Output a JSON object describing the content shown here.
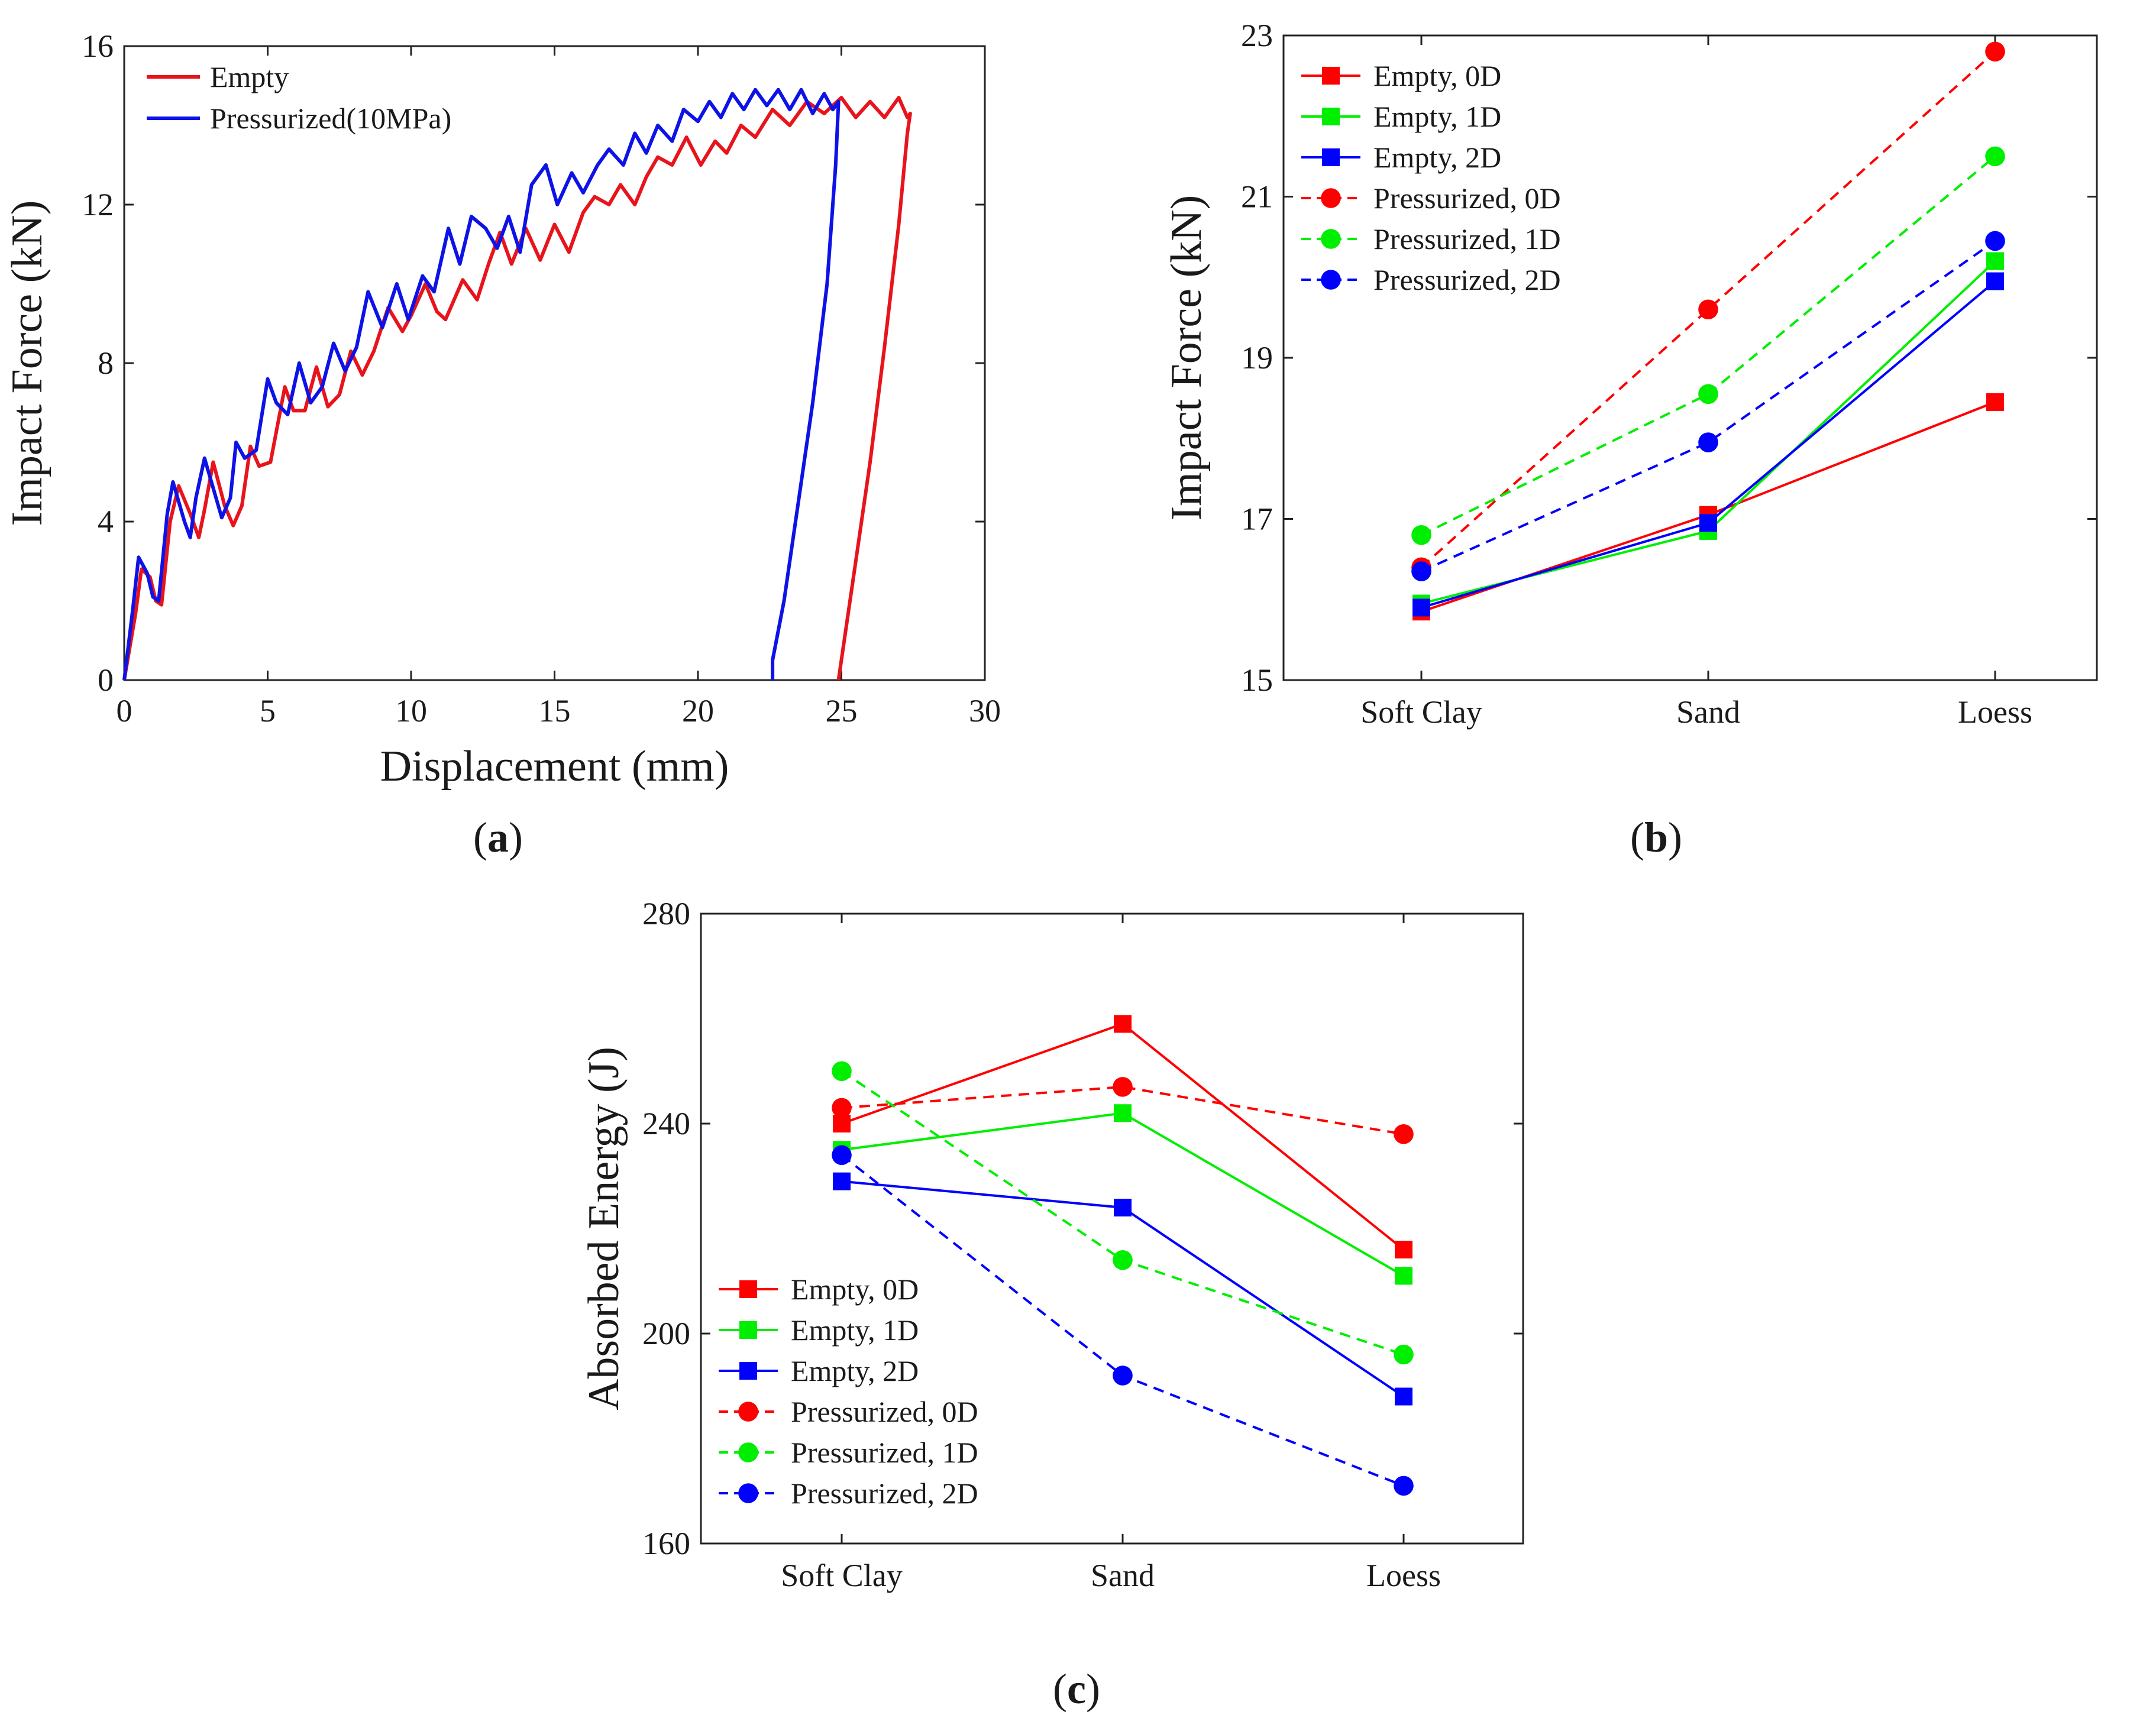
{
  "chart_data": [
    {
      "panel": "a",
      "caption": {
        "open": "(",
        "letter": "a",
        "close": ")"
      },
      "type": "line",
      "xlabel": "Displacement (mm)",
      "ylabel": "Impact Force (kN)",
      "xlim": [
        0,
        30
      ],
      "ylim": [
        0,
        16
      ],
      "xticks": [
        0,
        5,
        10,
        15,
        20,
        25,
        30
      ],
      "yticks": [
        0,
        4,
        8,
        12,
        16
      ],
      "grid": false,
      "legend": {
        "position": "top-left"
      },
      "series": [
        {
          "name": "Empty",
          "color": "#e8141b",
          "points": [
            [
              0,
              0
            ],
            [
              0.4,
              1.7
            ],
            [
              0.6,
              2.8
            ],
            [
              0.9,
              2.6
            ],
            [
              1.1,
              2.0
            ],
            [
              1.3,
              1.9
            ],
            [
              1.6,
              4.0
            ],
            [
              1.9,
              4.9
            ],
            [
              2.3,
              4.2
            ],
            [
              2.6,
              3.6
            ],
            [
              2.8,
              4.3
            ],
            [
              3.1,
              5.5
            ],
            [
              3.5,
              4.4
            ],
            [
              3.8,
              3.9
            ],
            [
              4.1,
              4.4
            ],
            [
              4.4,
              5.9
            ],
            [
              4.7,
              5.4
            ],
            [
              5.1,
              5.5
            ],
            [
              5.6,
              7.4
            ],
            [
              5.9,
              6.8
            ],
            [
              6.3,
              6.8
            ],
            [
              6.7,
              7.9
            ],
            [
              7.1,
              6.9
            ],
            [
              7.5,
              7.2
            ],
            [
              7.9,
              8.3
            ],
            [
              8.3,
              7.7
            ],
            [
              8.7,
              8.3
            ],
            [
              9.2,
              9.4
            ],
            [
              9.7,
              8.8
            ],
            [
              10.0,
              9.2
            ],
            [
              10.5,
              10.0
            ],
            [
              10.9,
              9.3
            ],
            [
              11.2,
              9.1
            ],
            [
              11.8,
              10.1
            ],
            [
              12.3,
              9.6
            ],
            [
              12.7,
              10.5
            ],
            [
              13.1,
              11.3
            ],
            [
              13.5,
              10.5
            ],
            [
              14.0,
              11.4
            ],
            [
              14.5,
              10.6
            ],
            [
              15.0,
              11.5
            ],
            [
              15.5,
              10.8
            ],
            [
              16.0,
              11.8
            ],
            [
              16.4,
              12.2
            ],
            [
              16.9,
              12.0
            ],
            [
              17.3,
              12.5
            ],
            [
              17.8,
              12.0
            ],
            [
              18.2,
              12.7
            ],
            [
              18.6,
              13.2
            ],
            [
              19.1,
              13.0
            ],
            [
              19.6,
              13.7
            ],
            [
              20.1,
              13.0
            ],
            [
              20.6,
              13.6
            ],
            [
              21.0,
              13.3
            ],
            [
              21.5,
              14.0
            ],
            [
              22.0,
              13.7
            ],
            [
              22.6,
              14.4
            ],
            [
              23.2,
              14.0
            ],
            [
              23.8,
              14.6
            ],
            [
              24.4,
              14.3
            ],
            [
              25.0,
              14.7
            ],
            [
              25.5,
              14.2
            ],
            [
              26.0,
              14.6
            ],
            [
              26.5,
              14.2
            ],
            [
              27.0,
              14.7
            ],
            [
              27.3,
              14.2
            ],
            [
              27.4,
              14.3
            ],
            [
              27.3,
              13.8
            ],
            [
              27.0,
              11.5
            ],
            [
              26.5,
              8.4
            ],
            [
              26.0,
              5.5
            ],
            [
              25.5,
              3.0
            ],
            [
              25.1,
              1.0
            ],
            [
              24.9,
              0
            ]
          ]
        },
        {
          "name": "Pressurized(10MPa)",
          "color": "#0d13e6",
          "points": [
            [
              0,
              0
            ],
            [
              0.3,
              1.8
            ],
            [
              0.5,
              3.1
            ],
            [
              0.8,
              2.7
            ],
            [
              1.0,
              2.1
            ],
            [
              1.2,
              2.0
            ],
            [
              1.5,
              4.2
            ],
            [
              1.7,
              5.0
            ],
            [
              2.1,
              4.0
            ],
            [
              2.3,
              3.6
            ],
            [
              2.5,
              4.6
            ],
            [
              2.8,
              5.6
            ],
            [
              3.2,
              4.6
            ],
            [
              3.4,
              4.1
            ],
            [
              3.7,
              4.6
            ],
            [
              3.9,
              6.0
            ],
            [
              4.2,
              5.6
            ],
            [
              4.6,
              5.8
            ],
            [
              5.0,
              7.6
            ],
            [
              5.3,
              7.0
            ],
            [
              5.7,
              6.7
            ],
            [
              6.1,
              8.0
            ],
            [
              6.5,
              7.0
            ],
            [
              6.9,
              7.4
            ],
            [
              7.3,
              8.5
            ],
            [
              7.7,
              7.8
            ],
            [
              8.1,
              8.4
            ],
            [
              8.5,
              9.8
            ],
            [
              9.0,
              8.9
            ],
            [
              9.5,
              10.0
            ],
            [
              9.9,
              9.1
            ],
            [
              10.4,
              10.2
            ],
            [
              10.8,
              9.8
            ],
            [
              11.3,
              11.4
            ],
            [
              11.7,
              10.5
            ],
            [
              12.1,
              11.7
            ],
            [
              12.6,
              11.4
            ],
            [
              13.0,
              10.9
            ],
            [
              13.4,
              11.7
            ],
            [
              13.8,
              10.8
            ],
            [
              14.2,
              12.5
            ],
            [
              14.7,
              13.0
            ],
            [
              15.1,
              12.0
            ],
            [
              15.6,
              12.8
            ],
            [
              16.0,
              12.3
            ],
            [
              16.5,
              13.0
            ],
            [
              16.9,
              13.4
            ],
            [
              17.4,
              13.0
            ],
            [
              17.8,
              13.8
            ],
            [
              18.2,
              13.3
            ],
            [
              18.6,
              14.0
            ],
            [
              19.1,
              13.6
            ],
            [
              19.5,
              14.4
            ],
            [
              20.0,
              14.1
            ],
            [
              20.4,
              14.6
            ],
            [
              20.8,
              14.2
            ],
            [
              21.2,
              14.8
            ],
            [
              21.6,
              14.4
            ],
            [
              22.0,
              14.9
            ],
            [
              22.4,
              14.5
            ],
            [
              22.8,
              14.9
            ],
            [
              23.2,
              14.4
            ],
            [
              23.6,
              14.9
            ],
            [
              24.0,
              14.3
            ],
            [
              24.4,
              14.8
            ],
            [
              24.7,
              14.4
            ],
            [
              24.9,
              14.6
            ],
            [
              24.8,
              13.0
            ],
            [
              24.5,
              10.0
            ],
            [
              24.0,
              7.0
            ],
            [
              23.5,
              4.5
            ],
            [
              23.0,
              2.0
            ],
            [
              22.6,
              0.5
            ],
            [
              22.6,
              0
            ]
          ]
        }
      ]
    },
    {
      "panel": "b",
      "caption": {
        "open": "(",
        "letter": "b",
        "close": ")"
      },
      "type": "line",
      "categories": [
        "Soft Clay",
        "Sand",
        "Loess"
      ],
      "ylabel": "Impact Force (kN)",
      "ylim": [
        15,
        23
      ],
      "yticks": [
        15,
        17,
        19,
        21,
        23
      ],
      "grid": false,
      "legend": {
        "position": "top-left"
      },
      "series": [
        {
          "name": "Empty, 0D",
          "values": [
            15.85,
            17.05,
            18.45
          ],
          "color": "#ff0000",
          "marker": "square",
          "dash": "solid"
        },
        {
          "name": "Empty, 1D",
          "values": [
            15.95,
            16.85,
            20.2
          ],
          "color": "#00ee00",
          "marker": "square",
          "dash": "solid"
        },
        {
          "name": "Empty, 2D",
          "values": [
            15.9,
            16.95,
            19.95
          ],
          "color": "#0000ff",
          "marker": "square",
          "dash": "solid"
        },
        {
          "name": "Pressurized, 0D",
          "values": [
            16.4,
            19.6,
            22.8
          ],
          "color": "#ff0000",
          "marker": "circle",
          "dash": "dashed"
        },
        {
          "name": "Pressurized, 1D",
          "values": [
            16.8,
            18.55,
            21.5
          ],
          "color": "#00ee00",
          "marker": "circle",
          "dash": "dashed"
        },
        {
          "name": "Pressurized, 2D",
          "values": [
            16.35,
            17.95,
            20.45
          ],
          "color": "#0000ff",
          "marker": "circle",
          "dash": "dashed"
        }
      ]
    },
    {
      "panel": "c",
      "caption": {
        "open": "(",
        "letter": "c",
        "close": ")"
      },
      "type": "line",
      "categories": [
        "Soft Clay",
        "Sand",
        "Loess"
      ],
      "ylabel": "Absorbed Energy (J)",
      "ylim": [
        160,
        280
      ],
      "yticks": [
        160,
        200,
        240,
        280
      ],
      "grid": false,
      "legend": {
        "position": "bottom-left"
      },
      "series": [
        {
          "name": "Empty, 0D",
          "values": [
            240,
            259,
            216
          ],
          "color": "#ff0000",
          "marker": "square",
          "dash": "solid"
        },
        {
          "name": "Empty, 1D",
          "values": [
            235,
            242,
            211
          ],
          "color": "#00ee00",
          "marker": "square",
          "dash": "solid"
        },
        {
          "name": "Empty, 2D",
          "values": [
            229,
            224,
            188
          ],
          "color": "#0000ff",
          "marker": "square",
          "dash": "solid"
        },
        {
          "name": "Pressurized, 0D",
          "values": [
            243,
            247,
            238
          ],
          "color": "#ff0000",
          "marker": "circle",
          "dash": "dashed"
        },
        {
          "name": "Pressurized, 1D",
          "values": [
            250,
            214,
            196
          ],
          "color": "#00ee00",
          "marker": "circle",
          "dash": "dashed"
        },
        {
          "name": "Pressurized, 2D",
          "values": [
            234,
            192,
            171
          ],
          "color": "#0000ff",
          "marker": "circle",
          "dash": "dashed"
        }
      ]
    }
  ]
}
